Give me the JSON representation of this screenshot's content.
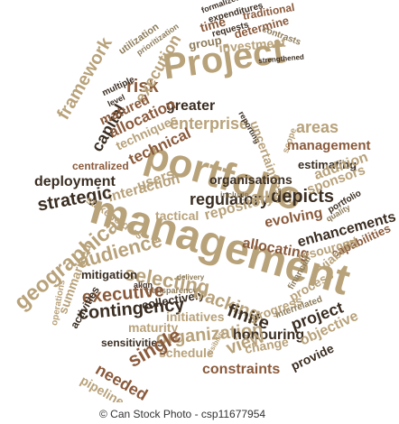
{
  "colors": {
    "tan": "#b8a27a",
    "brown": "#8a5a3b",
    "dark": "#3b2e22",
    "olive": "#8c7b59",
    "light": "#c9b79a"
  },
  "words": [
    {
      "text": "Project",
      "color": "tan"
    },
    {
      "text": "portfolio",
      "color": "tan"
    },
    {
      "text": "management",
      "color": "tan"
    },
    {
      "text": "risk",
      "color": "brown"
    },
    {
      "text": "multiple",
      "color": "dark"
    },
    {
      "text": "level",
      "color": "dark"
    },
    {
      "text": "execution",
      "color": "tan"
    },
    {
      "text": "utilization",
      "color": "olive"
    },
    {
      "text": "prioritization",
      "color": "olive"
    },
    {
      "text": "greater",
      "color": "dark"
    },
    {
      "text": "enterprise",
      "color": "tan"
    },
    {
      "text": "framework",
      "color": "tan"
    },
    {
      "text": "capital",
      "color": "dark"
    },
    {
      "text": "matured",
      "color": "brown"
    },
    {
      "text": "allocation",
      "color": "brown"
    },
    {
      "text": "techniques",
      "color": "tan"
    },
    {
      "text": "technical",
      "color": "brown"
    },
    {
      "text": "centralized",
      "color": "brown"
    },
    {
      "text": "deployment",
      "color": "dark"
    },
    {
      "text": "users",
      "color": "tan"
    },
    {
      "text": "interaction",
      "color": "tan"
    },
    {
      "text": "strategic",
      "color": "dark"
    },
    {
      "text": "stakeholders",
      "color": "tan"
    },
    {
      "text": "tactical",
      "color": "tan"
    },
    {
      "text": "regulatory",
      "color": "dark"
    },
    {
      "text": "allied",
      "color": "tan"
    },
    {
      "text": "depicts",
      "color": "dark"
    },
    {
      "text": "repository",
      "color": "tan"
    },
    {
      "text": "evolving",
      "color": "brown"
    },
    {
      "text": "allocating",
      "color": "brown"
    },
    {
      "text": "enhancements",
      "color": "dark"
    },
    {
      "text": "resources",
      "color": "tan"
    },
    {
      "text": "capabilities",
      "color": "brown"
    },
    {
      "text": "viability",
      "color": "tan"
    },
    {
      "text": "financial",
      "color": "olive"
    },
    {
      "text": "audience",
      "color": "tan"
    },
    {
      "text": "selecting",
      "color": "tan"
    },
    {
      "text": "mitigation",
      "color": "dark"
    },
    {
      "text": "align",
      "color": "dark"
    },
    {
      "text": "transparency",
      "color": "olive"
    },
    {
      "text": "delivery",
      "color": "olive"
    },
    {
      "text": "executive",
      "color": "brown"
    },
    {
      "text": "collectively",
      "color": "dark"
    },
    {
      "text": "tracking",
      "color": "tan"
    },
    {
      "text": "process",
      "color": "tan"
    },
    {
      "text": "contingency",
      "color": "dark"
    },
    {
      "text": "initiatives",
      "color": "tan"
    },
    {
      "text": "finite",
      "color": "dark"
    },
    {
      "text": "progress",
      "color": "tan"
    },
    {
      "text": "interrelated",
      "color": "olive"
    },
    {
      "text": "project",
      "color": "dark"
    },
    {
      "text": "geographical",
      "color": "tan"
    },
    {
      "text": "summarized",
      "color": "tan"
    },
    {
      "text": "activities",
      "color": "dark"
    },
    {
      "text": "operations",
      "color": "tan"
    },
    {
      "text": "maturity",
      "color": "tan"
    },
    {
      "text": "sensitivities",
      "color": "dark"
    },
    {
      "text": "organization",
      "color": "tan"
    },
    {
      "text": "honouring",
      "color": "dark"
    },
    {
      "text": "view",
      "color": "tan"
    },
    {
      "text": "change",
      "color": "tan"
    },
    {
      "text": "objective",
      "color": "tan"
    },
    {
      "text": "schedule",
      "color": "tan"
    },
    {
      "text": "visibility",
      "color": "tan"
    },
    {
      "text": "constraints",
      "color": "brown"
    },
    {
      "text": "provide",
      "color": "dark"
    },
    {
      "text": "single",
      "color": "brown"
    },
    {
      "text": "needed",
      "color": "brown"
    },
    {
      "text": "pipeline",
      "color": "tan"
    },
    {
      "text": "formalized",
      "color": "dark"
    },
    {
      "text": "expenditures",
      "color": "dark"
    },
    {
      "text": "traditional",
      "color": "brown"
    },
    {
      "text": "time",
      "color": "brown"
    },
    {
      "text": "requests",
      "color": "dark"
    },
    {
      "text": "determine",
      "color": "brown"
    },
    {
      "text": "contrasts",
      "color": "olive"
    },
    {
      "text": "group",
      "color": "olive"
    },
    {
      "text": "investment",
      "color": "tan"
    },
    {
      "text": "strengthened",
      "color": "dark"
    },
    {
      "text": "reporting",
      "color": "dark"
    },
    {
      "text": "uncertainties",
      "color": "tan"
    },
    {
      "text": "areas",
      "color": "tan"
    },
    {
      "text": "management",
      "color": "brown"
    },
    {
      "text": "scope",
      "color": "tan"
    },
    {
      "text": "estimating",
      "color": "dark"
    },
    {
      "text": "addition",
      "color": "tan"
    },
    {
      "text": "sponsors",
      "color": "tan"
    },
    {
      "text": "organisations",
      "color": "dark"
    },
    {
      "text": "include",
      "color": "olive"
    },
    {
      "text": "portfolio",
      "color": "dark"
    },
    {
      "text": "quality",
      "color": "olive"
    }
  ],
  "footer": {
    "copyright": "© Can Stock Photo - csp11677954"
  }
}
